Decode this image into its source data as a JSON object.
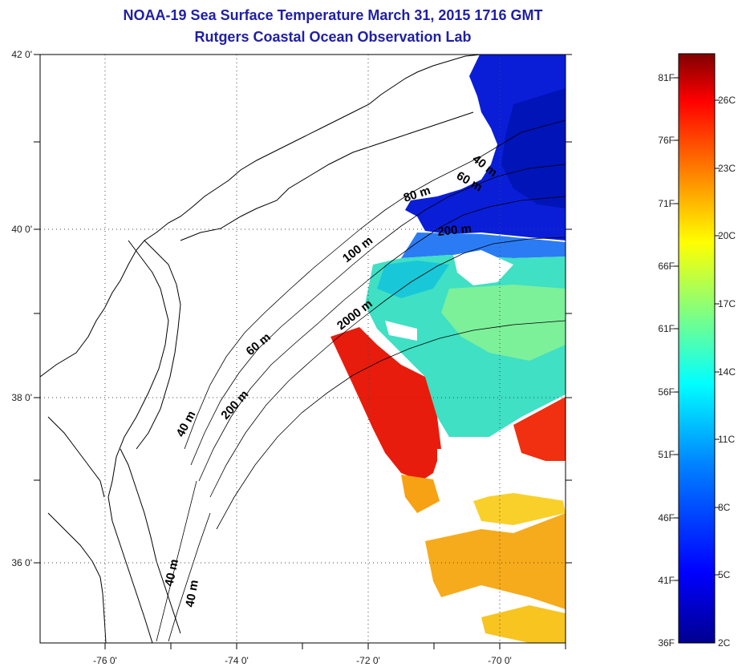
{
  "title": "NOAA-19 Sea Surface Temperature March 31, 2015 1716 GMT",
  "subtitle": "Rutgers Coastal Ocean Observation Lab",
  "map": {
    "lat_ticks": [
      "42 0'",
      "40 0'",
      "38 0'",
      "36 0'"
    ],
    "lon_ticks": [
      "-76 0'",
      "-74 0'",
      "-72 0'",
      "-70 0'"
    ],
    "lat_range": [
      35,
      42.1
    ],
    "lon_range": [
      -77,
      -69
    ],
    "grid": "dotted"
  },
  "isobaths": [
    "40 m",
    "60 m",
    "80 m",
    "200 m",
    "100 m",
    "2000 m",
    "60 m",
    "200 m",
    "40 m",
    "40 m",
    "40 m"
  ],
  "colorbar": {
    "f_labels": [
      "81F",
      "76F",
      "71F",
      "66F",
      "61F",
      "56F",
      "51F",
      "46F",
      "41F",
      "36F"
    ],
    "c_labels": [
      "26C",
      "23C",
      "20C",
      "17C",
      "14C",
      "11C",
      "8C",
      "5C",
      "2C"
    ],
    "range_c": [
      2,
      28
    ],
    "colors": [
      "#00008f",
      "#0000ff",
      "#0080ff",
      "#00ffff",
      "#80ff80",
      "#ffff00",
      "#ff8000",
      "#ff0000",
      "#800000"
    ]
  }
}
